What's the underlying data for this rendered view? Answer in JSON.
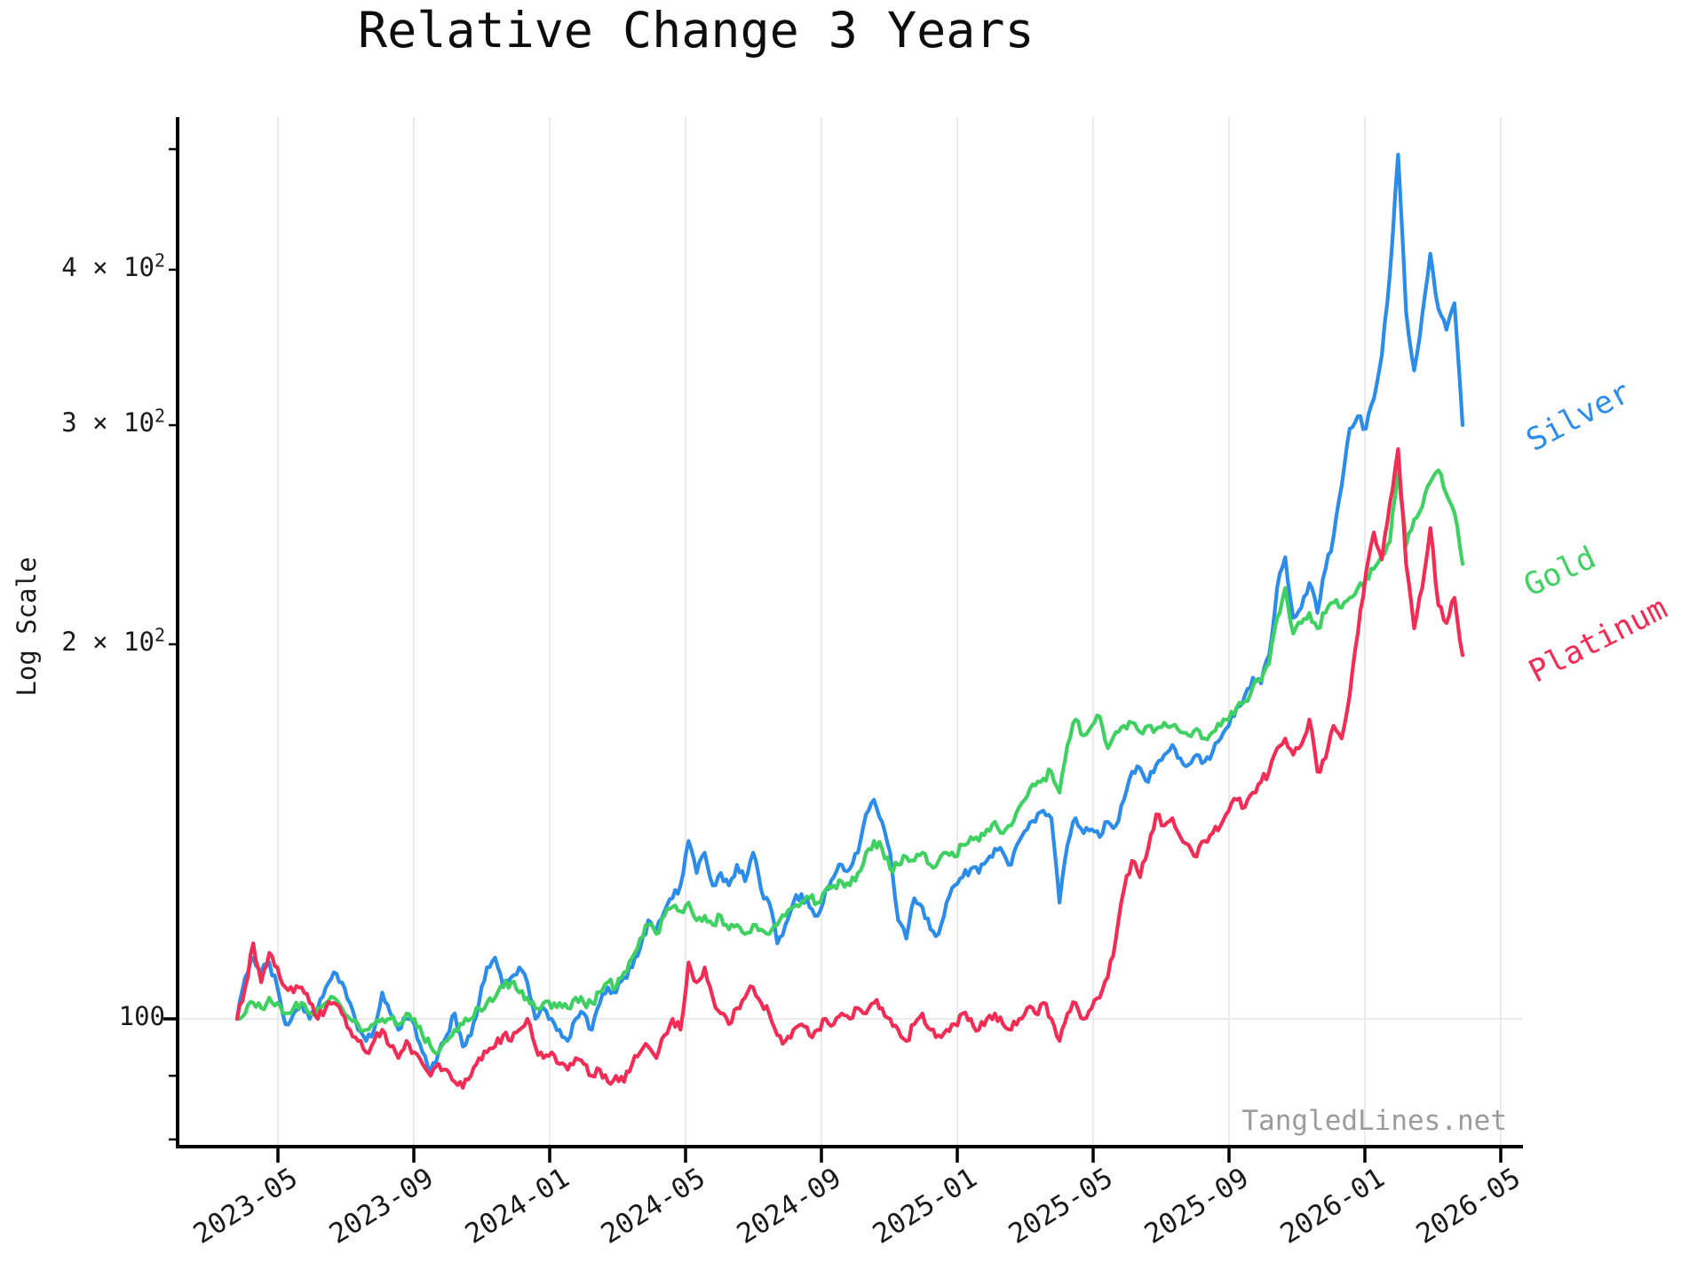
{
  "title": "Relative Change 3 Years",
  "ylabel": "Log Scale",
  "watermark": "TangledLines.net",
  "legend": [
    {
      "label": "Silver",
      "color": "#2b8ce9"
    },
    {
      "label": "Gold",
      "color": "#3ed161"
    },
    {
      "label": "Platinum",
      "color": "#f22c54"
    }
  ],
  "colors": {
    "background": "#ffffff",
    "grid": "#eaeaea",
    "axis": "#000000",
    "tick_label": "#1a1a1a",
    "watermark": "#9b9b9b"
  },
  "chart_data": {
    "type": "line",
    "title": "Relative Change 3 Years",
    "xlabel": "",
    "ylabel": "Log Scale",
    "yscale": "log",
    "ylim": [
      79,
      530
    ],
    "grid": {
      "vertical": "at every x tick",
      "horizontal": "log-major only (value 100)"
    },
    "legend_position": "right of line endpoints, rotated labels",
    "x_range": {
      "start_date": "2023-04-01",
      "end_date": "2026-03-27",
      "points_per_series": 153,
      "spacing": "~weekly, evenly spaced"
    },
    "x_tick_labels": [
      "2023-05",
      "2023-09",
      "2024-01",
      "2024-05",
      "2024-09",
      "2025-01",
      "2025-05",
      "2025-09",
      "2026-01",
      "2026-05"
    ],
    "y_tick_labels": [
      {
        "text": "4 × 10",
        "exp": "2",
        "value": 400
      },
      {
        "text": "3 × 10",
        "exp": "2",
        "value": 300
      },
      {
        "text": "2 × 10",
        "exp": "2",
        "value": 200
      },
      {
        "text": "100",
        "exp": "",
        "value": 100
      }
    ],
    "y_minor_ticks_unlabeled": [
      500,
      90,
      80
    ],
    "base_value": 100,
    "series": [
      {
        "name": "Silver",
        "color": "#2b8ce9",
        "values": [
          100,
          108,
          112,
          109,
          111,
          106,
          99,
          101,
          103,
          100,
          102,
          106,
          109,
          107,
          103,
          98,
          96,
          98,
          105,
          101,
          98,
          100,
          99,
          94,
          91,
          94,
          97,
          101,
          95,
          97,
          103,
          110,
          112,
          106,
          108,
          110,
          107,
          100,
          102,
          100,
          98,
          96,
          100,
          101,
          98,
          103,
          106,
          105,
          108,
          110,
          114,
          120,
          118,
          122,
          125,
          128,
          139,
          131,
          136,
          128,
          131,
          128,
          133,
          129,
          136,
          127,
          124,
          115,
          119,
          124,
          126,
          123,
          121,
          127,
          130,
          133,
          132,
          136,
          146,
          150,
          144,
          136,
          120,
          116,
          125,
          123,
          118,
          117,
          124,
          128,
          130,
          132,
          131,
          134,
          137,
          136,
          133,
          139,
          142,
          144,
          147,
          145,
          124,
          138,
          145,
          141,
          142,
          140,
          144,
          143,
          150,
          158,
          159,
          155,
          160,
          163,
          166,
          162,
          160,
          163,
          161,
          164,
          168,
          172,
          178,
          182,
          188,
          186,
          196,
          222,
          235,
          210,
          214,
          224,
          212,
          230,
          244,
          268,
          298,
          305,
          298,
          315,
          342,
          398,
          495,
          370,
          332,
          368,
          412,
          372,
          358,
          376,
          300
        ]
      },
      {
        "name": "Gold",
        "color": "#3ed161",
        "values": [
          100,
          101,
          103,
          102,
          104,
          103,
          101,
          102,
          103,
          101,
          102,
          103,
          104,
          102,
          100,
          99,
          98,
          99,
          100,
          100,
          99,
          101,
          100,
          97,
          95,
          94,
          96,
          98,
          99,
          100,
          102,
          103,
          104,
          106,
          107,
          105,
          104,
          102,
          103,
          102,
          103,
          102,
          104,
          103,
          103,
          105,
          107,
          106,
          109,
          112,
          116,
          119,
          117,
          121,
          123,
          122,
          124,
          120,
          121,
          119,
          121,
          118,
          119,
          117,
          119,
          118,
          117,
          119,
          121,
          123,
          124,
          125,
          124,
          127,
          128,
          129,
          128,
          131,
          136,
          139,
          137,
          132,
          133,
          135,
          134,
          136,
          133,
          134,
          136,
          135,
          138,
          140,
          139,
          142,
          144,
          141,
          143,
          148,
          151,
          154,
          156,
          158,
          152,
          166,
          174,
          169,
          172,
          175,
          165,
          170,
          172,
          173,
          170,
          172,
          171,
          173,
          172,
          170,
          169,
          171,
          168,
          170,
          172,
          174,
          178,
          180,
          185,
          187,
          193,
          210,
          222,
          204,
          208,
          212,
          206,
          212,
          216,
          214,
          218,
          222,
          226,
          230,
          236,
          242,
          278,
          240,
          252,
          258,
          270,
          276,
          264,
          255,
          232
        ]
      },
      {
        "name": "Platinum",
        "color": "#f22c54",
        "values": [
          100,
          106,
          115,
          107,
          113,
          110,
          106,
          105,
          106,
          103,
          100,
          102,
          103,
          101,
          98,
          96,
          94,
          96,
          98,
          95,
          93,
          96,
          94,
          92,
          90,
          92,
          91,
          89,
          88,
          90,
          93,
          94,
          95,
          97,
          96,
          98,
          100,
          95,
          93,
          94,
          92,
          91,
          93,
          92,
          90,
          91,
          89,
          90,
          89,
          92,
          94,
          95,
          93,
          97,
          100,
          98,
          111,
          107,
          110,
          104,
          101,
          99,
          102,
          104,
          106,
          103,
          101,
          97,
          96,
          98,
          99,
          97,
          98,
          100,
          99,
          101,
          100,
          102,
          101,
          103,
          102,
          100,
          98,
          96,
          99,
          101,
          98,
          97,
          98,
          99,
          101,
          100,
          98,
          100,
          101,
          99,
          98,
          100,
          102,
          101,
          103,
          100,
          96,
          101,
          103,
          100,
          102,
          104,
          108,
          116,
          127,
          134,
          130,
          137,
          146,
          143,
          145,
          140,
          138,
          135,
          139,
          141,
          143,
          147,
          150,
          148,
          152,
          155,
          158,
          165,
          168,
          163,
          166,
          174,
          158,
          162,
          172,
          168,
          182,
          204,
          228,
          246,
          234,
          260,
          287,
          232,
          206,
          222,
          248,
          215,
          208,
          218,
          196
        ]
      }
    ]
  }
}
